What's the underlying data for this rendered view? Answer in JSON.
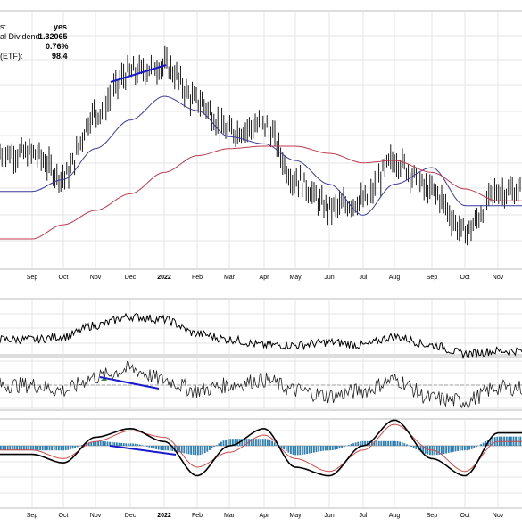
{
  "header": {
    "info_lines": [
      {
        "label": "s:",
        "value": "yes"
      },
      {
        "label": "al Dividend:",
        "value": "1.32065"
      },
      {
        "label": "",
        "value": "0.76%"
      },
      {
        "label": "(ETF):",
        "value": "98.4"
      }
    ]
  },
  "colors": {
    "background": "#ffffff",
    "grid": "#e6e6e6",
    "price_bars": "#000000",
    "ma_short": "#3b3b9e",
    "ma_long": "#c0394f",
    "trendline": "#1a1acc",
    "histogram": "#2f7fb0",
    "macd_line": "#000000",
    "signal_line": "#d24a4a"
  },
  "x_axis_labels": [
    "Sep",
    "Oct",
    "Nov",
    "Dec",
    "2022",
    "Feb",
    "Mar",
    "Apr",
    "May",
    "Jun",
    "Jul",
    "Aug",
    "Sep",
    "Oct",
    "Nov"
  ],
  "chart_data": [
    {
      "type": "ohlc",
      "panel": "price",
      "x": [
        "Sep",
        "Oct",
        "Nov",
        "Dec",
        "2022",
        "Feb",
        "Mar",
        "Apr",
        "May",
        "Jun",
        "Jul",
        "Aug",
        "Sep",
        "Oct",
        "Nov"
      ],
      "series": [
        {
          "role": "price",
          "values": [
            -62,
            -72,
            -45,
            -28,
            -25,
            -40,
            -53,
            -50,
            -73,
            -85,
            -82,
            -65,
            -78,
            -95,
            -78
          ]
        },
        {
          "role": "ma_short",
          "values": [
            -78,
            -73,
            -60,
            -48,
            -38,
            -44,
            -55,
            -58,
            -65,
            -75,
            -88,
            -75,
            -68,
            -84,
            -84
          ]
        },
        {
          "role": "ma_long",
          "values": [
            -98,
            -92,
            -86,
            -79,
            -70,
            -63,
            -60,
            -59,
            -59,
            -62,
            -66,
            -65,
            -70,
            -77,
            -82
          ]
        }
      ],
      "grid": true
    },
    {
      "type": "line",
      "panel": "relative_strength",
      "x": [
        "Sep",
        "Oct",
        "Nov",
        "Dec",
        "2022",
        "Feb",
        "Mar",
        "Apr",
        "May",
        "Jun",
        "Jul",
        "Aug",
        "Sep",
        "Oct",
        "Nov"
      ],
      "series": [
        {
          "role": "rs",
          "values": [
            -4,
            -3,
            1,
            4,
            3,
            -2,
            -4,
            -6,
            -6,
            -5,
            -6,
            -3,
            -6,
            -9,
            -8
          ]
        }
      ],
      "grid": true
    },
    {
      "type": "line",
      "panel": "oscillator",
      "x": [
        "Sep",
        "Oct",
        "Nov",
        "Dec",
        "2022",
        "Feb",
        "Mar",
        "Apr",
        "May",
        "Jun",
        "Jul",
        "Aug",
        "Sep",
        "Oct",
        "Nov"
      ],
      "series": [
        {
          "role": "oscillator",
          "values": [
            2,
            0,
            5,
            8,
            4,
            0,
            2,
            4,
            0,
            -2,
            0,
            4,
            -3,
            -4,
            1
          ]
        }
      ],
      "grid": true
    },
    {
      "type": "line",
      "panel": "macd",
      "x": [
        "Sep",
        "Oct",
        "Nov",
        "Dec",
        "2022",
        "Feb",
        "Mar",
        "Apr",
        "May",
        "Jun",
        "Jul",
        "Aug",
        "Sep",
        "Oct",
        "Nov"
      ],
      "series": [
        {
          "role": "macd",
          "values": [
            -4,
            -8,
            4,
            8,
            2,
            -14,
            0,
            8,
            -10,
            -14,
            0,
            12,
            -6,
            -14,
            6
          ]
        },
        {
          "role": "signal",
          "values": [
            -2,
            -6,
            2,
            7,
            4,
            -10,
            -3,
            5,
            -6,
            -12,
            -2,
            10,
            -2,
            -12,
            2
          ]
        }
      ],
      "grid": true
    }
  ]
}
